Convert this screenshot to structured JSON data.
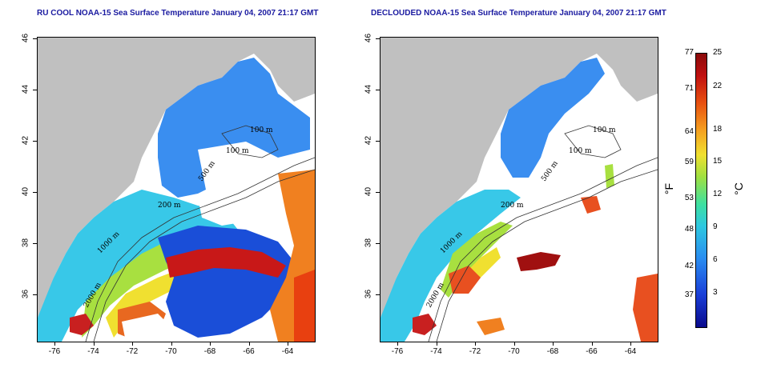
{
  "titles": {
    "left": "RU COOL NOAA-15 Sea Surface Temperature January 04, 2007 21:17 GMT",
    "right": "DECLOUDED NOAA-15 Sea Surface Temperature January 04, 2007 21:17 GMT"
  },
  "axes": {
    "y_ticks": [
      "46",
      "44",
      "42",
      "40",
      "38",
      "36"
    ],
    "x_ticks": [
      "-76",
      "-74",
      "-72",
      "-70",
      "-68",
      "-66",
      "-64"
    ]
  },
  "contour_labels": {
    "left": [
      "100 m",
      "100 m",
      "200 m",
      "500 m",
      "2000 m",
      "1000 m"
    ],
    "right": [
      "100 m",
      "100 m",
      "200 m",
      "500 m",
      "2000 m",
      "1000 m"
    ]
  },
  "colorbar": {
    "fahrenheit": [
      "77",
      "71",
      "64",
      "59",
      "53",
      "48",
      "42",
      "37"
    ],
    "celsius": [
      "25",
      "22",
      "18",
      "15",
      "12",
      "9",
      "6",
      "3"
    ],
    "unit_f": "°F",
    "unit_c": "°C",
    "colors": [
      "#0a0a8c",
      "#1a3fd8",
      "#2a8cf0",
      "#2ec8e0",
      "#3ee0a0",
      "#a0e040",
      "#f0e030",
      "#f5a020",
      "#e85010",
      "#c01010",
      "#8a0a0a"
    ]
  },
  "colors": {
    "land": "#c0c0c0",
    "cloud": "#ffffff",
    "title": "#1a1aa0"
  }
}
